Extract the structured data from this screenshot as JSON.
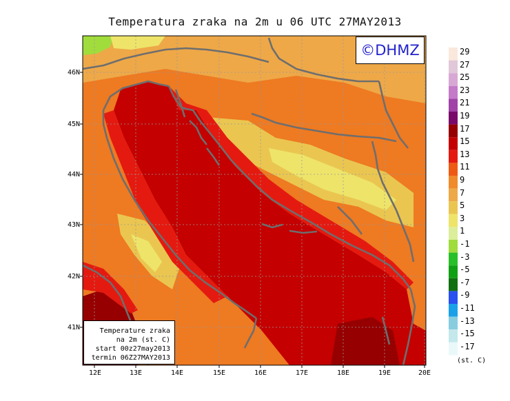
{
  "title": "Temperatura zraka na 2m u 06 UTC 27MAY2013",
  "logo": "©DHMZ",
  "info": {
    "line1": "Temperature zraka",
    "line2": "na 2m (st. C)",
    "line3": "start 00z27may2013",
    "line4": "termin 06Z27MAY2013"
  },
  "axes": {
    "lat_labels": [
      "46N",
      "45N",
      "44N",
      "43N",
      "42N",
      "41N"
    ],
    "lon_labels": [
      "12E",
      "13E",
      "14E",
      "15E",
      "16E",
      "17E",
      "18E",
      "19E",
      "20E"
    ]
  },
  "legend": {
    "unit": "(st. C)",
    "labels": [
      "29",
      "27",
      "25",
      "23",
      "21",
      "19",
      "17",
      "15",
      "13",
      "11",
      "9",
      "7",
      "5",
      "3",
      "1",
      "-1",
      "-3",
      "-5",
      "-7",
      "-9",
      "-11",
      "-13",
      "-15",
      "-17"
    ],
    "colors": [
      "#fbe8dc",
      "#e0c8d8",
      "#d8a8d4",
      "#c47ac8",
      "#a042a8",
      "#7a0a6a",
      "#960000",
      "#c40000",
      "#e41a10",
      "#ee5a14",
      "#f08a2a",
      "#eea848",
      "#eac650",
      "#eee46a",
      "#dcee9a",
      "#a0dc3c",
      "#28c028",
      "#10a014",
      "#107010",
      "#2850f0",
      "#1aa0e8",
      "#88cce0",
      "#c4e8ec",
      "#eaf8fa"
    ]
  },
  "colors": {
    "sea": "#c40000",
    "sea_deep": "#960000",
    "coast_warm": "#e41a10",
    "land_orange": "#ee7a22",
    "land_mid": "#eea848",
    "land_cool": "#eac650",
    "highland": "#eee46a",
    "green": "#a0dc3c",
    "coastline": "#6e6e6e"
  }
}
